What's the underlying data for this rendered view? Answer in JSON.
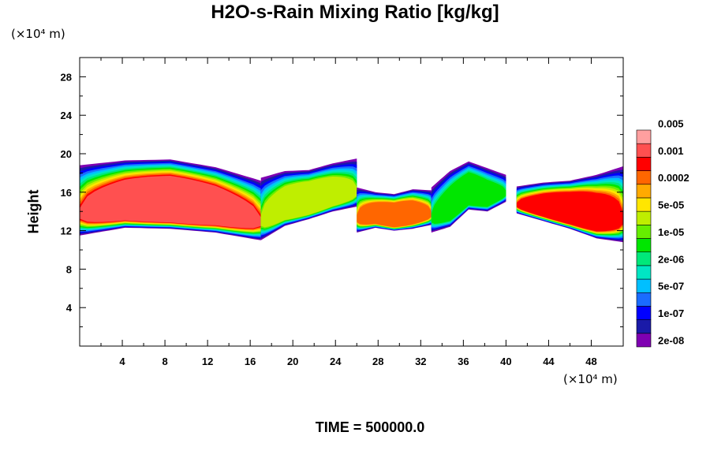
{
  "chart_data": {
    "type": "heatmap",
    "title": "H2O-s-Rain Mixing Ratio [kg/kg]",
    "ylabel": "Height",
    "x_unit": "(×10⁴ m)",
    "y_unit": "(×10⁴ m)",
    "footer": "TIME = 500000.0",
    "xlim": [
      0,
      51
    ],
    "ylim": [
      0,
      30
    ],
    "x_ticks": [
      4,
      8,
      12,
      16,
      20,
      24,
      28,
      32,
      36,
      40,
      44,
      48
    ],
    "y_ticks": [
      4,
      8,
      12,
      16,
      20,
      24,
      28
    ],
    "colorbar": {
      "levels": [
        "2e-08",
        "1e-07",
        "5e-07",
        "2e-06",
        "1e-05",
        "5e-05",
        "0.0002",
        "0.001",
        "0.005"
      ],
      "colors": [
        "#7f00b2",
        "#1a1aa8",
        "#0000ff",
        "#1a6cff",
        "#00bfff",
        "#00e6c4",
        "#00e87a",
        "#00e600",
        "#66ee00",
        "#bfee00",
        "#ffe600",
        "#ffaa00",
        "#ff6600",
        "#ff0000",
        "#ff5050",
        "#ff9f9f"
      ]
    },
    "bands": [
      {
        "x": [
          0,
          17
        ],
        "bottom": [
          11.5,
          12.3,
          12.2,
          11.8,
          11.0
        ],
        "top": [
          18.8,
          19.3,
          19.4,
          18.6,
          17.2
        ],
        "max_level": 14
      },
      {
        "x": [
          17,
          26
        ],
        "bottom": [
          11.0,
          12.5,
          13.2,
          14.0,
          14.5
        ],
        "top": [
          17.5,
          18.2,
          18.3,
          19.0,
          19.5
        ],
        "max_level": 9
      },
      {
        "x": [
          26,
          33
        ],
        "bottom": [
          11.8,
          12.3,
          12.0,
          12.2,
          12.6
        ],
        "top": [
          16.5,
          16.0,
          15.8,
          16.3,
          16.2
        ],
        "max_level": 12
      },
      {
        "x": [
          33,
          40
        ],
        "bottom": [
          11.8,
          12.4,
          14.2,
          14.0,
          15.0
        ],
        "top": [
          16.5,
          18.2,
          19.2,
          18.5,
          17.8
        ],
        "max_level": 7
      },
      {
        "x": [
          41,
          51
        ],
        "bottom": [
          13.8,
          13.0,
          12.2,
          11.2,
          10.8
        ],
        "top": [
          16.6,
          17.0,
          17.2,
          17.8,
          18.7
        ],
        "max_level": 13
      }
    ]
  }
}
